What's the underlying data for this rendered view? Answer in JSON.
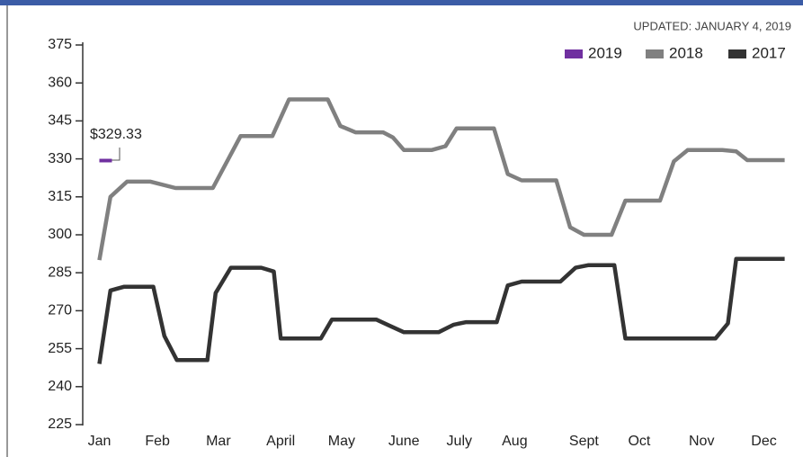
{
  "chart_data": {
    "type": "line",
    "subtitle": "UPDATED: JANUARY 4, 2019",
    "annotations": [
      {
        "text": "$329.33"
      }
    ],
    "xlim": [
      -1.2,
      50.5
    ],
    "xticks": [
      {
        "value": 0,
        "label": "Jan"
      },
      {
        "value": 4.2,
        "label": "Feb"
      },
      {
        "value": 8.6,
        "label": "Mar"
      },
      {
        "value": 13.1,
        "label": "April"
      },
      {
        "value": 17.5,
        "label": "May"
      },
      {
        "value": 22,
        "label": "June"
      },
      {
        "value": 26,
        "label": "July"
      },
      {
        "value": 30,
        "label": "Aug"
      },
      {
        "value": 35,
        "label": "Sept"
      },
      {
        "value": 39,
        "label": "Oct"
      },
      {
        "value": 43.5,
        "label": "Nov"
      },
      {
        "value": 48,
        "label": "Dec"
      }
    ],
    "ylim": [
      225,
      375
    ],
    "yticks": [
      225,
      240,
      255,
      270,
      285,
      300,
      315,
      330,
      345,
      360,
      375
    ],
    "grid": false,
    "legend": "top-right",
    "series": [
      {
        "name": "2019",
        "color": "#7030a0",
        "x": [
          0
        ],
        "values": [
          329.33
        ]
      },
      {
        "name": "2018",
        "color": "#808080",
        "x": [
          0,
          0.8,
          2,
          3.7,
          5.5,
          8.2,
          10.2,
          12.5,
          13.7,
          16.5,
          17.4,
          18.5,
          20.5,
          21.2,
          22,
          24,
          25,
          25.8,
          28.5,
          29.5,
          30.5,
          33,
          34,
          35,
          37,
          38,
          40.5,
          41.5,
          42.5,
          45,
          46,
          46.8,
          49.5
        ],
        "values": [
          290,
          315,
          321,
          321,
          318.5,
          318.5,
          339,
          339,
          353.5,
          353.5,
          343,
          340.5,
          340.5,
          338.5,
          333.5,
          333.5,
          335,
          342,
          342,
          324,
          321.5,
          321.5,
          303,
          300,
          300,
          313.5,
          313.5,
          329,
          333.5,
          333.5,
          333,
          329.5,
          329.5
        ]
      },
      {
        "name": "2017",
        "color": "#333333",
        "x": [
          0,
          0.8,
          1.8,
          3.9,
          4.7,
          5.6,
          7.8,
          8.4,
          9.5,
          11.7,
          12.6,
          13.1,
          16,
          16.8,
          20,
          21,
          22,
          24.5,
          25.6,
          26.5,
          28.7,
          29.5,
          30.5,
          33.3,
          34.4,
          35.3,
          37.2,
          38,
          44.5,
          45.4,
          46,
          49.5
        ],
        "values": [
          249,
          278,
          279.5,
          279.5,
          260,
          250.5,
          250.5,
          277,
          287,
          287,
          285.5,
          259,
          259,
          266.5,
          266.5,
          264,
          261.5,
          261.5,
          264.5,
          265.5,
          265.5,
          280,
          281.5,
          281.5,
          287,
          288,
          288,
          259,
          259,
          265,
          290.5,
          290.5
        ]
      }
    ]
  }
}
